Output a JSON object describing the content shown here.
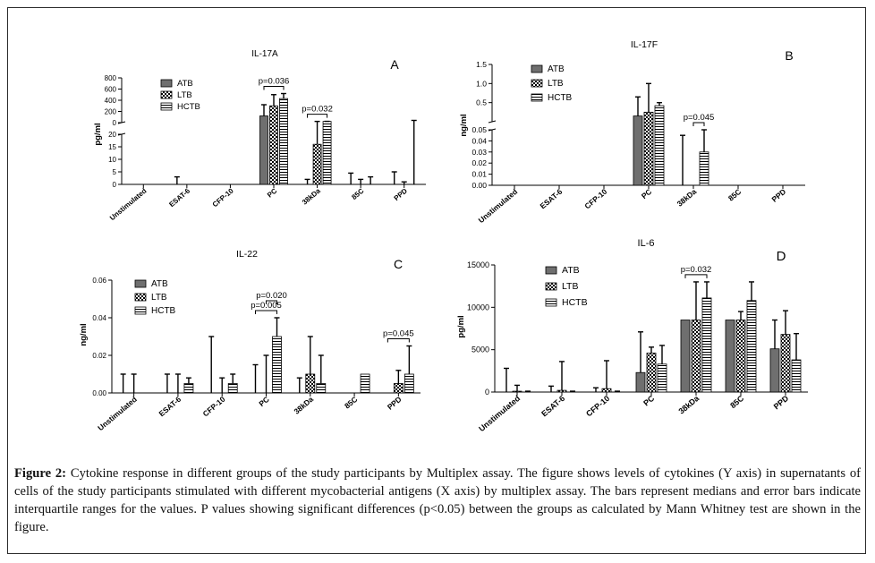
{
  "figure": {
    "caption_label": "Figure 2:",
    "caption_text": " Cytokine response in different groups of the study participants by Multiplex assay. The figure shows levels of cytokines (Y axis) in supernatants of cells of the study participants stimulated with different mycobacterial antigens (X axis) by multiplex assay. The bars represent medians and error bars indicate interquartile ranges for the values. P values showing significant differences (p<0.05) between the groups as calculated by Mann Whitney test are shown in the figure."
  },
  "chart_data": [
    {
      "type": "bar",
      "panel_letter": "A",
      "title": "IL-17A",
      "ylabel": "pg/ml",
      "broken_axis": true,
      "upper_ylim": [
        0,
        800
      ],
      "upper_yticks": [
        "800",
        "600",
        "400",
        "200",
        "0"
      ],
      "lower_ylim": [
        0,
        20
      ],
      "lower_yticks": [
        "20",
        "15",
        "10",
        "5",
        "0"
      ],
      "categories": [
        "Unstimulated",
        "ESAT-6",
        "CFP-10",
        "PC",
        "38kDa",
        "85C",
        "PPD"
      ],
      "series": [
        {
          "name": "ATB",
          "values": [
            0,
            0,
            0,
            120,
            0,
            0,
            0
          ],
          "err": [
            0,
            3,
            0,
            320,
            2,
            4.5,
            5
          ]
        },
        {
          "name": "LTB",
          "values": [
            0,
            0,
            0,
            300,
            16,
            0,
            0
          ],
          "err": [
            0,
            0,
            0,
            500,
            22,
            2,
            1
          ]
        },
        {
          "name": "HCTB",
          "values": [
            0,
            0,
            0,
            430,
            22,
            0,
            0
          ],
          "err": [
            0,
            0,
            0,
            520,
            23,
            3,
            40
          ]
        }
      ],
      "significance": [
        {
          "category": "PC",
          "from": "ATB",
          "to": "HCTB",
          "label": "p=0.036"
        },
        {
          "category": "38kDa",
          "from": "ATB",
          "to": "HCTB",
          "label": "p=0.032"
        }
      ]
    },
    {
      "type": "bar",
      "panel_letter": "B",
      "title": "IL-17F",
      "ylabel": "ng/ml",
      "broken_axis": true,
      "upper_ylim": [
        0,
        1.5
      ],
      "upper_yticks": [
        "1.5",
        "1.0",
        "0.5"
      ],
      "lower_ylim": [
        0,
        0.05
      ],
      "lower_yticks": [
        "0.05",
        "0.04",
        "0.03",
        "0.02",
        "0.01",
        "0.00"
      ],
      "categories": [
        "Unstimulated",
        "ESAT-6",
        "CFP-10",
        "PC",
        "38kDa",
        "85C",
        "PPD"
      ],
      "series": [
        {
          "name": "ATB",
          "values": [
            0,
            0,
            0,
            0.15,
            0,
            0,
            0
          ],
          "err": [
            0,
            0,
            0,
            0.65,
            0.045,
            0,
            0
          ]
        },
        {
          "name": "LTB",
          "values": [
            0,
            0,
            0,
            0.25,
            0,
            0,
            0
          ],
          "err": [
            0,
            0,
            0,
            1.0,
            0,
            0,
            0
          ]
        },
        {
          "name": "HCTB",
          "values": [
            0,
            0,
            0,
            0.42,
            0.03,
            0,
            0
          ],
          "err": [
            0,
            0,
            0,
            0.5,
            0.05,
            0,
            0
          ]
        }
      ],
      "significance": [
        {
          "category": "38kDa",
          "from": "LTB",
          "to": "HCTB",
          "label": "p=0.045"
        }
      ]
    },
    {
      "type": "bar",
      "panel_letter": "C",
      "title": "IL-22",
      "ylabel": "ng/ml",
      "broken_axis": false,
      "ylim": [
        0,
        0.06
      ],
      "yticks": [
        "0.06",
        "0.04",
        "0.02",
        "0.00"
      ],
      "categories": [
        "Unstimulated",
        "ESAT-6",
        "CFP-10",
        "PC",
        "38kDa",
        "85C",
        "PPD"
      ],
      "series": [
        {
          "name": "ATB",
          "values": [
            0,
            0,
            0,
            0,
            0,
            0,
            0
          ],
          "err": [
            0.01,
            0.01,
            0.03,
            0.015,
            0.008,
            0,
            0
          ]
        },
        {
          "name": "LTB",
          "values": [
            0,
            0,
            0,
            0,
            0.01,
            0,
            0.005
          ],
          "err": [
            0.01,
            0.01,
            0.008,
            0.02,
            0.03,
            0,
            0.012
          ]
        },
        {
          "name": "HCTB",
          "values": [
            0,
            0.005,
            0.005,
            0.03,
            0.005,
            0.01,
            0.01
          ],
          "err": [
            0,
            0.008,
            0.01,
            0.04,
            0.02,
            0.01,
            0.025
          ]
        }
      ],
      "significance": [
        {
          "category": "PC",
          "from": "ATB",
          "to": "HCTB",
          "label": "p=0.005"
        },
        {
          "category": "PC",
          "from": "LTB",
          "to": "HCTB",
          "label": "p=0.020"
        },
        {
          "category": "PPD",
          "from": "ATB",
          "to": "HCTB",
          "label": "p=0.045"
        }
      ]
    },
    {
      "type": "bar",
      "panel_letter": "D",
      "title": "IL-6",
      "ylabel": "pg/ml",
      "broken_axis": false,
      "ylim": [
        0,
        15000
      ],
      "yticks": [
        "15000",
        "10000",
        "5000",
        "0"
      ],
      "categories": [
        "Unstimulated",
        "ESAT-6",
        "CFP-10",
        "PC",
        "38kDa",
        "85C",
        "PPD"
      ],
      "series": [
        {
          "name": "ATB",
          "values": [
            0,
            0,
            0,
            2300,
            8500,
            8500,
            5100
          ],
          "err": [
            2800,
            700,
            500,
            7100,
            8500,
            8500,
            8500
          ]
        },
        {
          "name": "LTB",
          "values": [
            100,
            200,
            400,
            4600,
            8500,
            8500,
            6800
          ],
          "err": [
            800,
            3600,
            3700,
            5300,
            13000,
            9500,
            9600
          ]
        },
        {
          "name": "HCTB",
          "values": [
            0,
            0,
            0,
            3300,
            11100,
            10800,
            3800
          ],
          "err": [
            100,
            100,
            100,
            5500,
            13000,
            13000,
            6900
          ]
        }
      ],
      "significance": [
        {
          "category": "38kDa",
          "from": "ATB",
          "to": "HCTB",
          "label": "p=0.032"
        }
      ]
    }
  ]
}
